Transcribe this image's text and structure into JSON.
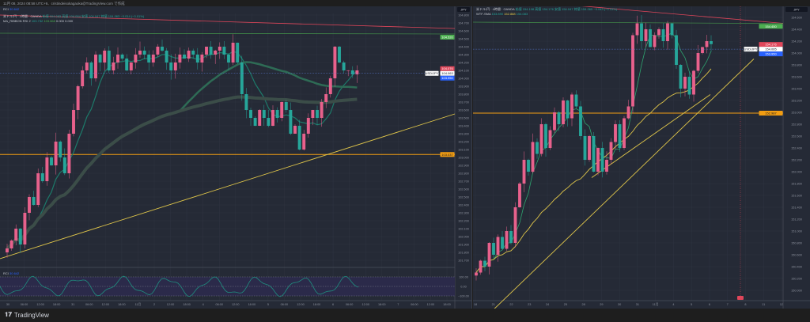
{
  "topbar": {
    "title": "11月 08, 2024 08:58 UTC+9、cristindeisokagaoka@TradingView.com で作成"
  },
  "left": {
    "rci_top_label": "RCI",
    "rci_top_value": "30.642",
    "legend_line1": "米ドル/円 · 1時間 · OANDA",
    "ohlc": [
      "始値 104.083",
      "高値 104.084",
      "安値 104.047",
      "終値 104.063",
      "−0.014 (−0.01%)"
    ],
    "legend_line2": "MA_RIBBON RSI 2",
    "ma_values": [
      "103.732",
      "103.668",
      "0.000",
      "0.000"
    ],
    "currency": "JPY",
    "price_ticks": [
      "104.800",
      "104.700",
      "104.600",
      "104.500",
      "104.400",
      "104.300",
      "104.200",
      "104.100",
      "104.000",
      "103.900",
      "103.800",
      "103.700",
      "103.600",
      "103.500",
      "103.400",
      "103.300",
      "103.200",
      "103.100",
      "103.000",
      "102.900",
      "102.800",
      "102.700",
      "102.600",
      "102.500",
      "102.400",
      "102.300",
      "102.200",
      "102.100",
      "102.000",
      "101.900",
      "101.800",
      "101.700"
    ],
    "tags": {
      "green": "104.520",
      "red": "104.076",
      "white": "104.063",
      "blue": "103.950",
      "orange": "103.037"
    },
    "usdjpy_tag": "USD/JPY",
    "rci_pane": {
      "label": "RCI",
      "value": "30.642",
      "ticks": [
        "100.00",
        "0.00",
        "−100.00"
      ]
    },
    "time_ticks": [
      "30",
      "06:00",
      "12:00",
      "18:00",
      "31",
      "06:00",
      "12:00",
      "18:00",
      "11月",
      "2",
      "12:00",
      "18:00",
      "4",
      "06:00",
      "12:00",
      "18:00",
      "5",
      "06:00",
      "12:00",
      "18:00",
      "6",
      "06:00",
      "12:00",
      "18:00",
      "7",
      "06:00",
      "12:00",
      "18:00"
    ],
    "closes": [
      101.85,
      101.95,
      102.1,
      101.9,
      102.3,
      102.5,
      102.4,
      102.8,
      102.7,
      103.0,
      102.9,
      103.2,
      103.0,
      102.8,
      103.3,
      103.6,
      103.9,
      104.1,
      104.2,
      104.0,
      104.3,
      104.2,
      104.35,
      104.1,
      104.2,
      104.3,
      104.25,
      104.1,
      104.2,
      104.3,
      104.35,
      104.3,
      104.2,
      104.3,
      104.4,
      104.35,
      104.2,
      104.1,
      104.2,
      104.3,
      104.25,
      104.35,
      104.3,
      104.2,
      104.3,
      104.4,
      104.3,
      104.35,
      104.4,
      104.3,
      104.2,
      104.45,
      104.2,
      103.8,
      103.6,
      103.5,
      103.4,
      103.6,
      103.5,
      103.4,
      103.6,
      103.5,
      103.7,
      103.6,
      103.3,
      103.4,
      103.1,
      103.3,
      103.5,
      103.6,
      103.5,
      103.7,
      103.8,
      104.0,
      104.4,
      104.2,
      104.1,
      104.1,
      104.05,
      104.1
    ]
  },
  "right": {
    "legend_line1": "米ドル/円 · 4時間 · OANDA",
    "ohlc": [
      "始値 154.108",
      "高値 154.176",
      "安値 154.047",
      "終値 154.065",
      "−0.043 (−0.03%)"
    ],
    "legend_line2": "WTF-SMA",
    "ma_values": [
      "153.890",
      "152.888",
      "154.083"
    ],
    "currency": "JPY",
    "price_ticks": [
      "154.600",
      "154.400",
      "154.200",
      "154.000",
      "153.800",
      "153.600",
      "153.400",
      "153.200",
      "153.000",
      "152.800",
      "152.600",
      "152.400",
      "152.200",
      "152.000",
      "151.800",
      "151.600",
      "151.400",
      "151.200",
      "151.000",
      "150.800",
      "150.600",
      "150.400",
      "150.200",
      "150.000"
    ],
    "tags": {
      "green": "154.450",
      "red": "154.176",
      "white": "154.065",
      "blue": "153.950",
      "orange": "152.987"
    },
    "usdjpy_tag": "USD/JPY",
    "time_ticks": [
      "18",
      "21",
      "22",
      "23",
      "24",
      "25",
      "28",
      "29",
      "30",
      "31",
      "11月",
      "4",
      "5",
      "6",
      "7",
      "8",
      "11",
      "12"
    ],
    "closes": [
      150.3,
      150.5,
      150.4,
      150.8,
      150.6,
      150.9,
      150.7,
      151.0,
      150.8,
      151.4,
      151.8,
      152.2,
      152.0,
      152.5,
      152.3,
      152.8,
      152.4,
      152.7,
      153.0,
      152.8,
      153.2,
      152.9,
      153.3,
      153.1,
      152.6,
      152.2,
      152.6,
      152.0,
      152.4,
      152.0,
      152.2,
      152.5,
      152.8,
      152.4,
      152.9,
      153.1,
      154.3,
      154.5,
      154.2,
      154.4,
      154.1,
      154.3,
      154.4,
      154.2,
      154.5,
      154.3,
      153.8,
      153.4,
      153.6,
      153.3,
      153.7,
      154.0,
      154.1,
      154.2,
      154.15
    ]
  },
  "footer": {
    "brand": "TradingView"
  },
  "colors": {
    "up": "#e8618c",
    "down": "#26a69a",
    "orange": "#f29d12",
    "yellow": "#e0c64a",
    "red": "#e0465a",
    "green": "#4caf50",
    "blue": "#2962ff"
  }
}
